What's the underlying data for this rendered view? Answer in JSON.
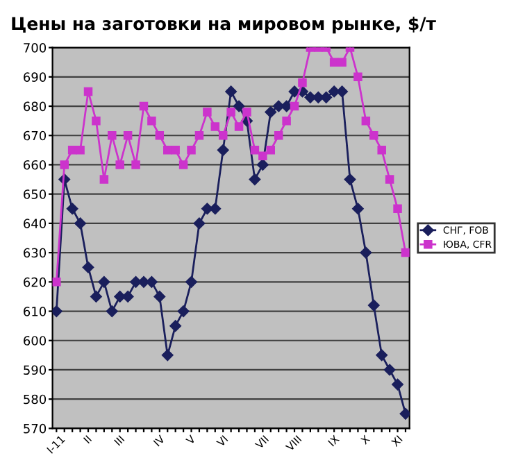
{
  "chart_data": {
    "type": "line",
    "title": "Цены на заготовки на мировом рынке, $/т",
    "categories": [
      "I-11",
      null,
      null,
      null,
      "II",
      null,
      null,
      null,
      "III",
      null,
      null,
      null,
      null,
      "IV",
      null,
      null,
      null,
      "V",
      null,
      null,
      null,
      "VI",
      null,
      null,
      null,
      null,
      "VII",
      null,
      null,
      null,
      "VIII",
      null,
      null,
      null,
      null,
      "IX",
      null,
      null,
      null,
      "X",
      null,
      null,
      null,
      "XI",
      null
    ],
    "series": [
      {
        "name": "СНГ, FOB",
        "color": "#1a1f5c",
        "marker": "diamond",
        "values": [
          610,
          655,
          645,
          640,
          625,
          615,
          620,
          610,
          615,
          615,
          620,
          620,
          620,
          615,
          595,
          605,
          610,
          620,
          640,
          645,
          645,
          665,
          685,
          680,
          675,
          655,
          660,
          678,
          680,
          680,
          685,
          685,
          683,
          683,
          683,
          685,
          685,
          655,
          645,
          630,
          612,
          595,
          590,
          585,
          575
        ]
      },
      {
        "name": "ЮВА, CFR",
        "color": "#cc33cc",
        "marker": "square",
        "values": [
          620,
          660,
          665,
          665,
          685,
          675,
          655,
          670,
          660,
          670,
          660,
          680,
          675,
          670,
          665,
          665,
          660,
          665,
          670,
          678,
          673,
          670,
          678,
          673,
          678,
          665,
          663,
          665,
          670,
          675,
          680,
          688,
          700,
          700,
          700,
          695,
          695,
          700,
          690,
          675,
          670,
          665,
          655,
          645,
          630
        ]
      }
    ],
    "ylim": [
      570,
      700
    ],
    "yticks": [
      570,
      580,
      590,
      600,
      610,
      620,
      630,
      640,
      650,
      660,
      670,
      680,
      690,
      700
    ],
    "grid": "y",
    "legend": "right"
  }
}
